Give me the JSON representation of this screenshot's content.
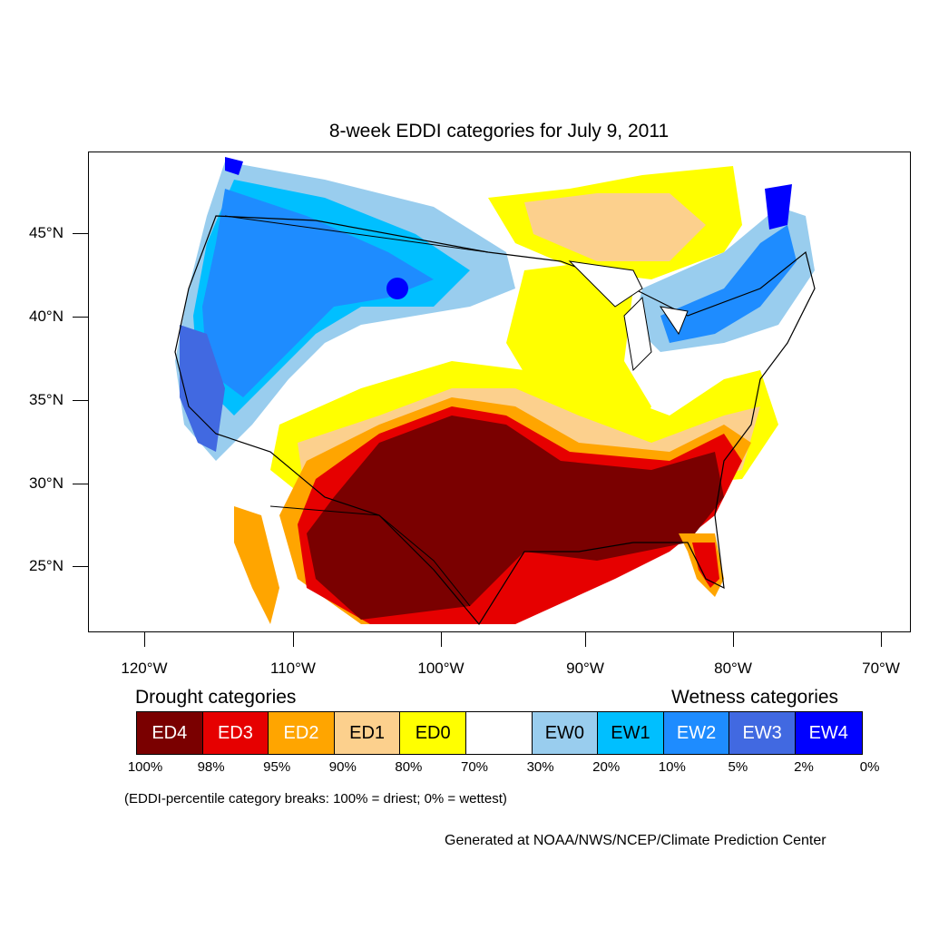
{
  "title": "8-week EDDI categories for July 9, 2011",
  "map": {
    "region": "Contiguous United States",
    "lat_labels": [
      "45°N",
      "40°N",
      "35°N",
      "30°N",
      "25°N"
    ],
    "lon_labels": [
      "120°W",
      "110°W",
      "100°W",
      "90°W",
      "80°W",
      "70°W"
    ]
  },
  "legend": {
    "drought_heading": "Drought categories",
    "wetness_heading": "Wetness categories",
    "categories": [
      {
        "label": "ED4",
        "color": "#7a0000",
        "text_color": "#ffffff"
      },
      {
        "label": "ED3",
        "color": "#e60000",
        "text_color": "#ffffff"
      },
      {
        "label": "ED2",
        "color": "#ffa500",
        "text_color": "#ffffff"
      },
      {
        "label": "ED1",
        "color": "#fcd08d",
        "text_color": "#000000"
      },
      {
        "label": "ED0",
        "color": "#ffff00",
        "text_color": "#000000"
      },
      {
        "label": "",
        "color": "#ffffff",
        "text_color": "#000000"
      },
      {
        "label": "EW0",
        "color": "#99cdee",
        "text_color": "#000000"
      },
      {
        "label": "EW1",
        "color": "#00bfff",
        "text_color": "#000000"
      },
      {
        "label": "EW2",
        "color": "#1e8cff",
        "text_color": "#ffffff"
      },
      {
        "label": "EW3",
        "color": "#4169e1",
        "text_color": "#ffffff"
      },
      {
        "label": "EW4",
        "color": "#0000ff",
        "text_color": "#ffffff"
      }
    ],
    "breaks": [
      "100%",
      "98%",
      "95%",
      "90%",
      "80%",
      "70%",
      "30%",
      "20%",
      "10%",
      "5%",
      "2%",
      "0%"
    ]
  },
  "note": "(EDDI-percentile category breaks: 100% = driest; 0% = wettest)",
  "credit": "Generated at NOAA/NWS/NCEP/Climate Prediction Center"
}
